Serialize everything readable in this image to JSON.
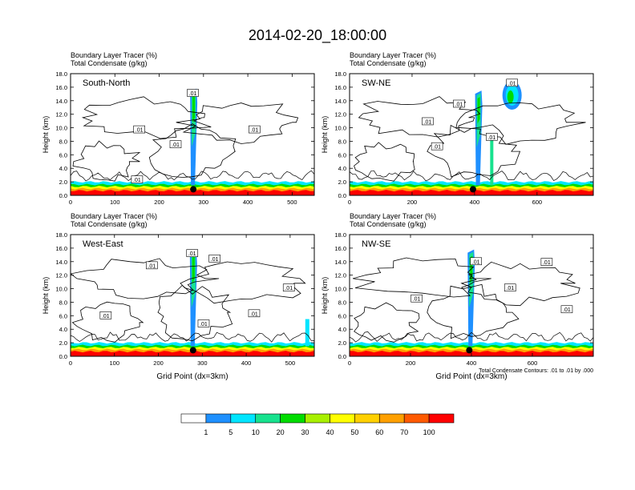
{
  "title": "2014-02-20_18:00:00",
  "colors": {
    "contour": "#000000",
    "axis": "#000000",
    "palette": [
      "#ffffff",
      "#1e90ff",
      "#00e5ff",
      "#17e28e",
      "#00dc00",
      "#a8f000",
      "#ffff00",
      "#ffd000",
      "#ffa000",
      "#ff5a00",
      "#ff0000"
    ]
  },
  "chart_data": [
    {
      "type": "heatmap",
      "panel": "South-North",
      "header": [
        "Boundary Layer Tracer   (%)",
        "Total Condensate   (g/kg)"
      ],
      "ylabel": "Height (km)",
      "xlabel": "",
      "xlim": [
        0,
        550
      ],
      "ylim": [
        0,
        18
      ],
      "xticks": [
        0,
        100,
        200,
        300,
        400,
        500
      ],
      "xticklabels": [
        "0",
        "100",
        "200",
        "300",
        "400",
        "500"
      ],
      "yticks": [
        0,
        2,
        4,
        6,
        8,
        10,
        12,
        14,
        16,
        18
      ],
      "yticklabels": [
        "0.0",
        "2.0",
        "4.0",
        "6.0",
        "8.0",
        "10.0",
        "12.0",
        "14.0",
        "16.0",
        "18.0"
      ],
      "marker_x": 277,
      "plume": {
        "x": 277,
        "base_km": 1.5,
        "top_km": 15.8
      },
      "contour_label": ".01",
      "contour_label_points": [
        [
          276,
          15.1
        ],
        [
          155,
          9.7
        ],
        [
          237,
          7.5
        ],
        [
          415,
          9.7
        ],
        [
          150,
          2.3
        ]
      ]
    },
    {
      "type": "heatmap",
      "panel": "SW-NE",
      "header": [
        "Boundary Layer Tracer   (%)",
        "Total Condensate   (g/kg)"
      ],
      "ylabel": "Height (km)",
      "xlabel": "",
      "xlim": [
        0,
        780
      ],
      "ylim": [
        0,
        18
      ],
      "xticks": [
        0,
        200,
        400,
        600
      ],
      "xticklabels": [
        "0",
        "200",
        "400",
        "600"
      ],
      "yticks": [
        0,
        2,
        4,
        6,
        8,
        10,
        12,
        14,
        16,
        18
      ],
      "yticklabels": [
        "0.0",
        "2.0",
        "4.0",
        "6.0",
        "8.0",
        "10.0",
        "12.0",
        "14.0",
        "16.0",
        "18.0"
      ],
      "marker_x": 395,
      "plume": {
        "x": 412,
        "base_km": 1.5,
        "top_km": 15.5
      },
      "contour_label": ".01",
      "contour_label_points": [
        [
          520,
          16.6
        ],
        [
          350,
          13.5
        ],
        [
          250,
          10.9
        ],
        [
          280,
          7.2
        ],
        [
          455,
          8.6
        ]
      ]
    },
    {
      "type": "heatmap",
      "panel": "West-East",
      "header": [
        "Boundary Layer Tracer   (%)",
        "Total Condensate   (g/kg)"
      ],
      "ylabel": "Height (km)",
      "xlabel": "Grid Point (dx=3km)",
      "xlim": [
        0,
        555
      ],
      "ylim": [
        0,
        18
      ],
      "xticks": [
        0,
        100,
        200,
        300,
        400,
        500
      ],
      "xticklabels": [
        "0",
        "100",
        "200",
        "300",
        "400",
        "500"
      ],
      "yticks": [
        0,
        2,
        4,
        6,
        8,
        10,
        12,
        14,
        16,
        18
      ],
      "yticklabels": [
        "0.0",
        "2.0",
        "4.0",
        "6.0",
        "8.0",
        "10.0",
        "12.0",
        "14.0",
        "16.0",
        "18.0"
      ],
      "marker_x": 279,
      "plume": {
        "x": 279,
        "base_km": 1.5,
        "top_km": 15.8
      },
      "contour_label": ".01",
      "contour_label_points": [
        [
          277,
          15.2
        ],
        [
          328,
          14.4
        ],
        [
          185,
          13.4
        ],
        [
          497,
          10.1
        ],
        [
          80,
          6.0
        ],
        [
          418,
          6.3
        ],
        [
          303,
          4.8
        ]
      ]
    },
    {
      "type": "heatmap",
      "panel": "NW-SE",
      "header": [
        "Boundary Layer Tracer   (%)",
        "Total Condensate   (g/kg)"
      ],
      "ylabel": "Height (km)",
      "xlabel": "Grid Point (dx=3km)",
      "xlim": [
        0,
        800
      ],
      "ylim": [
        0,
        18
      ],
      "xticks": [
        0,
        200,
        400,
        600
      ],
      "xticklabels": [
        "0",
        "200",
        "400",
        "600"
      ],
      "yticks": [
        0,
        2,
        4,
        6,
        8,
        10,
        12,
        14,
        16,
        18
      ],
      "yticklabels": [
        "0.0",
        "2.0",
        "4.0",
        "6.0",
        "8.0",
        "10.0",
        "12.0",
        "14.0",
        "16.0",
        "18.0"
      ],
      "marker_x": 393,
      "plume": {
        "x": 398,
        "base_km": 1.5,
        "top_km": 15.8
      },
      "contour_label": ".01",
      "contour_label_points": [
        [
          415,
          14.0
        ],
        [
          647,
          13.9
        ],
        [
          527,
          10.1
        ],
        [
          220,
          8.5
        ],
        [
          713,
          6.9
        ]
      ],
      "note": "Total Condensate Contours: .01 to .01 by .000"
    }
  ],
  "colorbar": {
    "levels": [
      "1",
      "5",
      "10",
      "20",
      "30",
      "40",
      "50",
      "60",
      "70",
      "100"
    ]
  }
}
